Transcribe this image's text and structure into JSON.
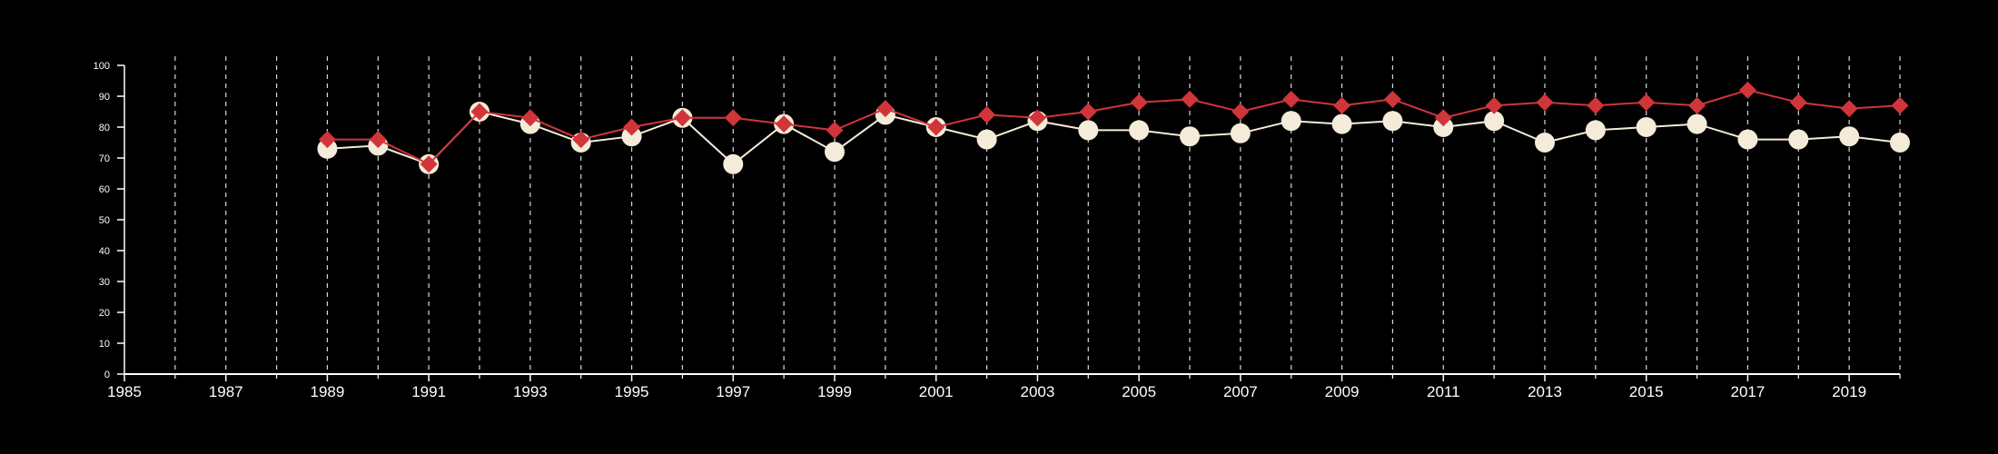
{
  "chart_data": {
    "type": "line",
    "title": "",
    "xlabel": "",
    "ylabel": "",
    "xlim": [
      1985,
      2020
    ],
    "ylim": [
      0,
      100
    ],
    "y_ticks": [
      0,
      10,
      20,
      30,
      40,
      50,
      60,
      70,
      80,
      90,
      100
    ],
    "x_tick_labels": [
      1985,
      1987,
      1989,
      1991,
      1993,
      1995,
      1997,
      1999,
      2001,
      2003,
      2005,
      2007,
      2009,
      2011,
      2013,
      2015,
      2017,
      2019
    ],
    "x_minor_ticks": [
      1986,
      1988,
      1990,
      1992,
      1994,
      1996,
      1998,
      2000,
      2002,
      2004,
      2006,
      2008,
      2010,
      2012,
      2014,
      2016,
      2018,
      2020
    ],
    "grid": "vertical dashed at every year",
    "colors": {
      "background": "#000000",
      "axes": "#ffffff",
      "grid": "#d8d8d8",
      "series_red": "#d0353a",
      "series_cream": "#f5ebd9"
    },
    "series": [
      {
        "marker": "circle",
        "color": "#f5ebd9",
        "x": [
          1989,
          1990,
          1991,
          1992,
          1993,
          1994,
          1995,
          1996,
          1997,
          1998,
          1999,
          2000,
          2001,
          2002,
          2003,
          2004,
          2005,
          2006,
          2007,
          2008,
          2009,
          2010,
          2011,
          2012,
          2013,
          2014,
          2015,
          2016,
          2017,
          2018,
          2019,
          2020
        ],
        "values": [
          73,
          74,
          68,
          85,
          81,
          75,
          77,
          83,
          68,
          81,
          72,
          84,
          80,
          76,
          82,
          79,
          79,
          77,
          78,
          82,
          81,
          82,
          80,
          82,
          75,
          79,
          80,
          81,
          76,
          76,
          77,
          75
        ]
      },
      {
        "marker": "diamond",
        "color": "#d0353a",
        "x": [
          1989,
          1990,
          1991,
          1992,
          1993,
          1994,
          1995,
          1996,
          1997,
          1998,
          1999,
          2000,
          2001,
          2002,
          2003,
          2004,
          2005,
          2006,
          2007,
          2008,
          2009,
          2010,
          2011,
          2012,
          2013,
          2014,
          2015,
          2016,
          2017,
          2018,
          2019,
          2020
        ],
        "values": [
          76,
          76,
          68,
          85,
          83,
          76,
          80,
          83,
          83,
          81,
          79,
          86,
          80,
          84,
          83,
          85,
          88,
          89,
          85,
          89,
          87,
          89,
          83,
          87,
          88,
          87,
          88,
          87,
          92,
          88,
          86,
          87
        ]
      }
    ]
  }
}
